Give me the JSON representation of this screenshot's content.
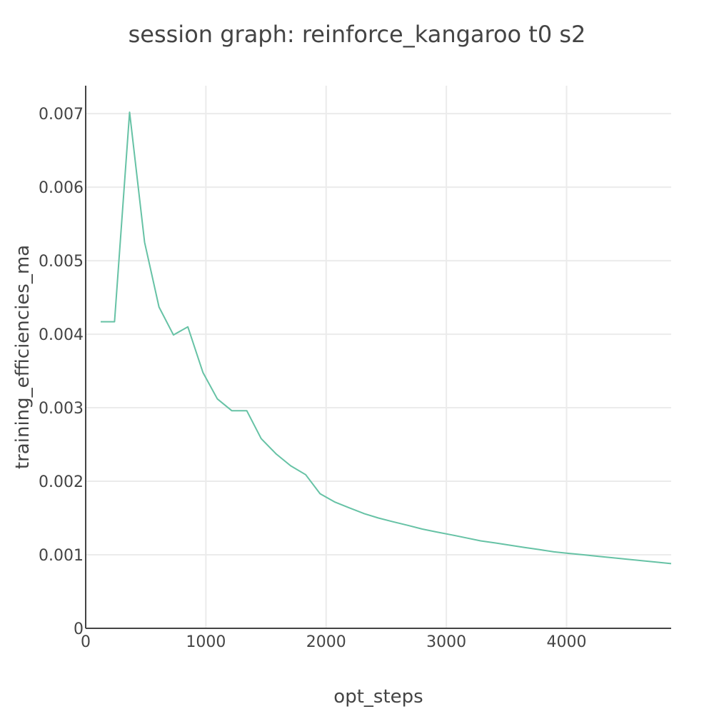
{
  "chart_data": {
    "type": "line",
    "title": "session graph: reinforce_kangaroo t0 s2",
    "xlabel": "opt_steps",
    "ylabel": "training_efficiencies_ma",
    "xlim": [
      0,
      4870
    ],
    "ylim": [
      0,
      0.00738
    ],
    "x_ticks": [
      {
        "value": 0,
        "label": "0"
      },
      {
        "value": 1000,
        "label": "1000"
      },
      {
        "value": 2000,
        "label": "2000"
      },
      {
        "value": 3000,
        "label": "3000"
      },
      {
        "value": 4000,
        "label": "4000"
      }
    ],
    "y_ticks": [
      {
        "value": 0,
        "label": "0"
      },
      {
        "value": 0.001,
        "label": "0.001"
      },
      {
        "value": 0.002,
        "label": "0.002"
      },
      {
        "value": 0.003,
        "label": "0.003"
      },
      {
        "value": 0.004,
        "label": "0.004"
      },
      {
        "value": 0.005,
        "label": "0.005"
      },
      {
        "value": 0.006,
        "label": "0.006"
      },
      {
        "value": 0.007,
        "label": "0.007"
      }
    ],
    "grid": true,
    "series": [
      {
        "color": "#66c2a5",
        "x": [
          125,
          240,
          365,
          490,
          610,
          730,
          850,
          975,
          1095,
          1215,
          1340,
          1460,
          1585,
          1705,
          1830,
          1950,
          2070,
          2190,
          2315,
          2435,
          2555,
          2680,
          2800,
          2920,
          3045,
          3165,
          3285,
          3410,
          3530,
          3650,
          3775,
          3895,
          4015,
          4140,
          4260,
          4380,
          4505,
          4625,
          4745,
          4870
        ],
        "y": [
          0.00417,
          0.00417,
          0.00702,
          0.00525,
          0.00437,
          0.00399,
          0.0041,
          0.00348,
          0.00312,
          0.00296,
          0.00296,
          0.00258,
          0.00237,
          0.00221,
          0.00209,
          0.00183,
          0.00172,
          0.00164,
          0.00156,
          0.0015,
          0.00145,
          0.0014,
          0.00135,
          0.00131,
          0.00127,
          0.00123,
          0.00119,
          0.00116,
          0.00113,
          0.0011,
          0.00107,
          0.00104,
          0.00102,
          0.001,
          0.00098,
          0.00096,
          0.00094,
          0.00092,
          0.0009,
          0.00088
        ]
      }
    ]
  }
}
